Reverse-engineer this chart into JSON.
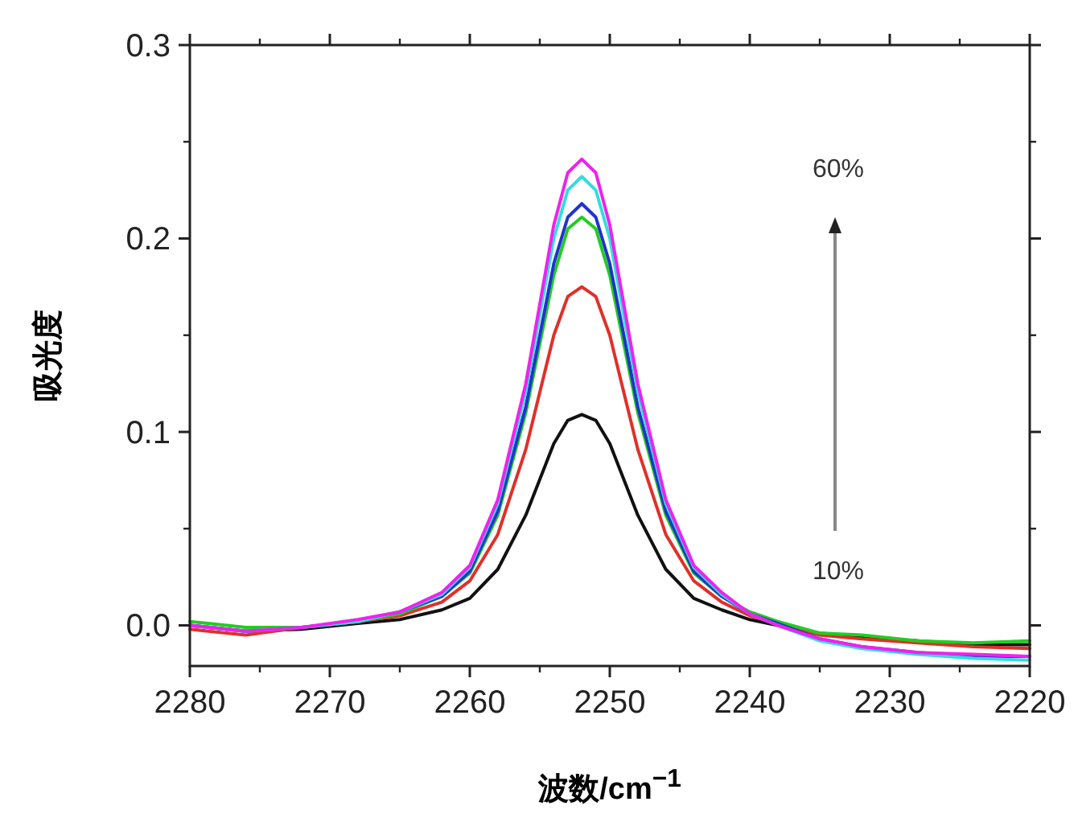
{
  "chart_data": {
    "type": "line",
    "xlabel": "波数/cm$^{−1}$",
    "ylabel": "吸光度",
    "x": [
      2280,
      2276,
      2272,
      2268,
      2265,
      2262,
      2260,
      2258,
      2256,
      2254,
      2253,
      2252,
      2251,
      2250,
      2248,
      2246,
      2244,
      2242,
      2240,
      2238,
      2235,
      2232,
      2228,
      2224,
      2220
    ],
    "xlim": [
      2280,
      2220
    ],
    "xticks": [
      2280,
      2270,
      2260,
      2250,
      2240,
      2230,
      2220
    ],
    "ylim": [
      -0.021,
      0.3
    ],
    "yticks": [
      {
        "value": 0,
        "label": "0.0"
      },
      {
        "value": 0.1,
        "label": "0.1"
      },
      {
        "value": 0.2,
        "label": "0.2"
      },
      {
        "value": 0.3,
        "label": "0.3"
      }
    ],
    "grid": false,
    "marker": "none",
    "line_style": "solid",
    "annotations": [
      "60%",
      "10%"
    ],
    "series": [
      {
        "color": "#111111",
        "values": [
          0,
          -0.003,
          -0.002,
          0.001,
          0.003,
          0.008,
          0.014,
          0.029,
          0.057,
          0.094,
          0.106,
          0.109,
          0.106,
          0.094,
          0.057,
          0.029,
          0.014,
          0.008,
          0.003,
          0.0,
          -0.004,
          -0.006,
          -0.008,
          -0.01,
          -0.01
        ]
      },
      {
        "color": "#e0302a",
        "values": [
          -0.002,
          -0.005,
          -0.001,
          0.002,
          0.005,
          0.012,
          0.023,
          0.047,
          0.091,
          0.15,
          0.17,
          0.175,
          0.17,
          0.15,
          0.091,
          0.047,
          0.023,
          0.012,
          0.005,
          0.001,
          -0.005,
          -0.007,
          -0.009,
          -0.011,
          -0.012
        ]
      },
      {
        "color": "#22cc22",
        "values": [
          0.002,
          -0.001,
          -0.001,
          0.002,
          0.006,
          0.015,
          0.027,
          0.057,
          0.11,
          0.181,
          0.205,
          0.211,
          0.205,
          0.181,
          0.11,
          0.057,
          0.027,
          0.015,
          0.007,
          0.002,
          -0.004,
          -0.005,
          -0.008,
          -0.009,
          -0.008
        ]
      },
      {
        "color": "#2233cc",
        "values": [
          0,
          -0.003,
          -0.001,
          0.002,
          0.007,
          0.015,
          0.028,
          0.059,
          0.113,
          0.187,
          0.211,
          0.218,
          0.211,
          0.187,
          0.113,
          0.059,
          0.028,
          0.015,
          0.006,
          0.001,
          -0.007,
          -0.011,
          -0.014,
          -0.016,
          -0.016
        ]
      },
      {
        "color": "#33dddd",
        "values": [
          0,
          -0.003,
          -0.001,
          0.002,
          0.007,
          0.016,
          0.03,
          0.063,
          0.121,
          0.2,
          0.225,
          0.232,
          0.225,
          0.2,
          0.121,
          0.063,
          0.03,
          0.016,
          0.006,
          0.0,
          -0.008,
          -0.012,
          -0.015,
          -0.017,
          -0.018
        ]
      },
      {
        "color": "#ee22ee",
        "values": [
          0,
          -0.003,
          -0.001,
          0.003,
          0.007,
          0.017,
          0.031,
          0.065,
          0.125,
          0.207,
          0.234,
          0.241,
          0.234,
          0.207,
          0.125,
          0.065,
          0.031,
          0.017,
          0.006,
          0.0,
          -0.007,
          -0.011,
          -0.014,
          -0.015,
          -0.016
        ]
      }
    ]
  }
}
